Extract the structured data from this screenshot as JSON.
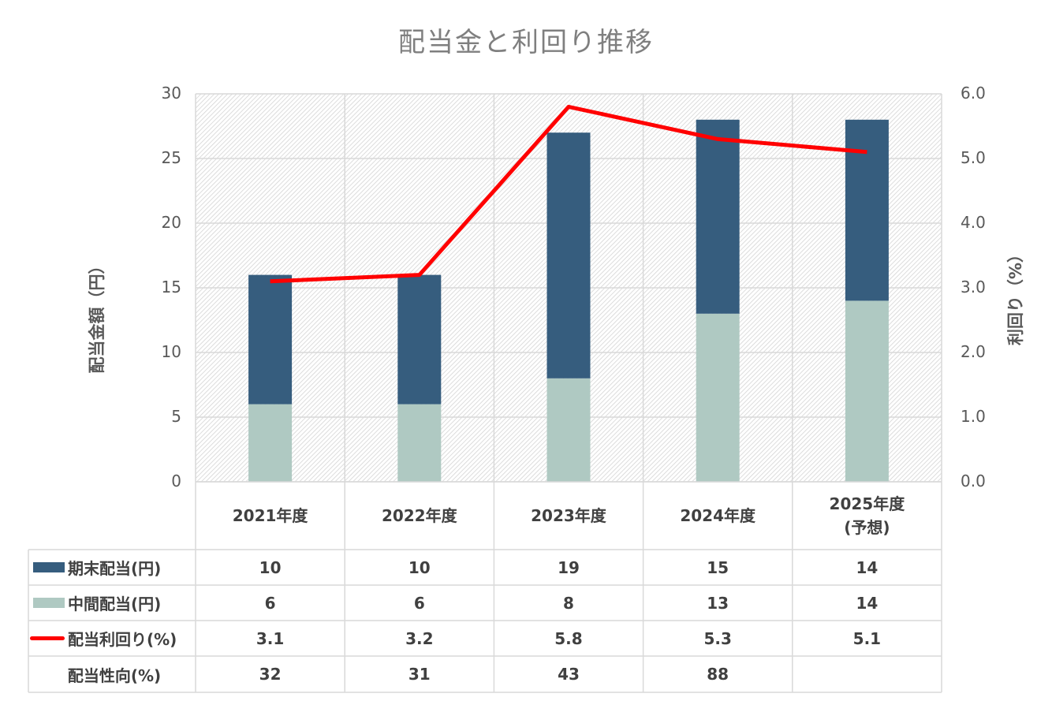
{
  "chart_data": {
    "type": "bar",
    "stacked": true,
    "title": "配当金と利回り推移",
    "categories": [
      "2021年度",
      "2022年度",
      "2023年度",
      "2024年度",
      "2025年度\n(予想)"
    ],
    "ylabel": "配当金額（円）",
    "ylabel_right": "利回り（%）",
    "ylim": [
      0,
      30
    ],
    "ylim_right": [
      0,
      6.0
    ],
    "yticks": [
      "0",
      "5",
      "10",
      "15",
      "20",
      "25",
      "30"
    ],
    "yticks_right": [
      "0.0",
      "1.0",
      "2.0",
      "3.0",
      "4.0",
      "5.0",
      "6.0"
    ],
    "grid": true,
    "legend": "data-table-left",
    "series": [
      {
        "name": "中間配当(円)",
        "type": "bar",
        "axis": "left",
        "color": "#afc9c2",
        "values": [
          6,
          6,
          8,
          13,
          14
        ],
        "labels": [
          "6",
          "6",
          "8",
          "13",
          "14"
        ]
      },
      {
        "name": "期末配当(円)",
        "type": "bar",
        "axis": "left",
        "color": "#365d7e",
        "values": [
          10,
          10,
          19,
          15,
          14
        ],
        "labels": [
          "10",
          "10",
          "19",
          "15",
          "14"
        ]
      },
      {
        "name": "配当利回り(%)",
        "type": "line",
        "axis": "right",
        "color": "#ff0000",
        "values": [
          3.1,
          3.2,
          5.8,
          5.3,
          5.1
        ],
        "labels": [
          "3.1",
          "3.2",
          "5.8",
          "5.3",
          "5.1"
        ]
      }
    ],
    "table_rows": [
      {
        "name": "期末配当(円)",
        "legend": "bar-dark",
        "values": [
          "10",
          "10",
          "19",
          "15",
          "14"
        ]
      },
      {
        "name": "中間配当(円)",
        "legend": "bar-light",
        "values": [
          "6",
          "6",
          "8",
          "13",
          "14"
        ]
      },
      {
        "name": "配当利回り(%)",
        "legend": "line-red",
        "values": [
          "3.1",
          "3.2",
          "5.8",
          "5.3",
          "5.1"
        ]
      },
      {
        "name": "配当性向(%)",
        "legend": "none",
        "values": [
          "32",
          "31",
          "43",
          "88",
          ""
        ]
      }
    ]
  }
}
